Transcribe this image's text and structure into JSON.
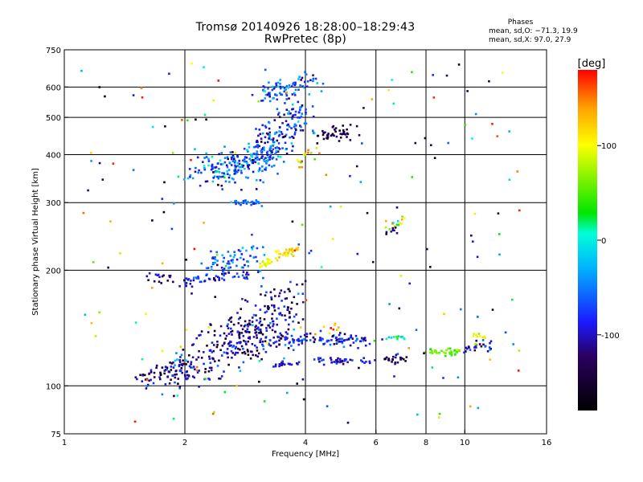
{
  "title": {
    "line1": "Tromsø 20140926 18:28:00–18:29:43",
    "line2": "RwPretec (8p)"
  },
  "stats": {
    "heading": "Phases",
    "o_mode": "mean, sd,O: −71.3, 19.9",
    "x_mode": "mean, sd,X:  97.0, 27.9"
  },
  "chart_data": {
    "type": "scatter",
    "title": "Tromsø 20140926 18:28:00–18:29:43",
    "subtitle": "RwPretec (8p)",
    "xlabel": "Frequency [MHz]",
    "ylabel": "Stationary phase Virtual Height [km]",
    "x_scale": "log",
    "y_scale": "log",
    "xlim": [
      1,
      16
    ],
    "ylim": [
      75,
      750
    ],
    "x_ticks": [
      1,
      2,
      4,
      6,
      8,
      10,
      16
    ],
    "x_tick_labels": [
      "1",
      "2",
      "4",
      "6",
      "8",
      "10",
      "16"
    ],
    "x_gridlines": [
      2,
      4,
      6,
      8,
      10
    ],
    "y_ticks": [
      75,
      100,
      200,
      300,
      400,
      500,
      600,
      750
    ],
    "y_tick_labels": [
      "75",
      "100",
      "200",
      "300",
      "400",
      "500",
      "600",
      "750"
    ],
    "y_gridlines": [
      100,
      200,
      300,
      400,
      500,
      600
    ],
    "grid": true,
    "colorbar": {
      "label": "[deg]",
      "range": [
        -180,
        180
      ],
      "ticks": [
        100,
        0,
        -100
      ],
      "tick_labels": [
        "100",
        "0",
        "-100"
      ],
      "position": "right"
    },
    "color_stops": [
      "#000000",
      "#2a0060",
      "#1a1aff",
      "#00b4ff",
      "#00ffd8",
      "#00e600",
      "#ffff00",
      "#ffa000",
      "#ff0000"
    ],
    "series": [
      {
        "from": [
          1.55,
          104
        ],
        "to": [
          2.2,
          112
        ],
        "count": 90,
        "spread": [
          0.05,
          0.04
        ],
        "phase": [
          -115,
          30
        ]
      },
      {
        "from": [
          2.0,
          110
        ],
        "to": [
          3.3,
          145
        ],
        "count": 160,
        "spread": [
          0.07,
          0.07
        ],
        "phase": [
          -110,
          35
        ]
      },
      {
        "from": [
          2.6,
          130
        ],
        "to": [
          3.8,
          170
        ],
        "count": 150,
        "spread": [
          0.05,
          0.09
        ],
        "phase": [
          -115,
          30
        ]
      },
      {
        "from": [
          3.2,
          132
        ],
        "to": [
          5.8,
          132
        ],
        "count": 120,
        "spread": [
          0.03,
          0.02
        ],
        "phase": [
          -85,
          25
        ]
      },
      {
        "from": [
          3.3,
          114
        ],
        "to": [
          3.9,
          114
        ],
        "count": 18,
        "spread": [
          0.01,
          0.01
        ],
        "phase": [
          -90,
          15
        ]
      },
      {
        "from": [
          4.2,
          116
        ],
        "to": [
          5.8,
          116
        ],
        "count": 45,
        "spread": [
          0.02,
          0.01
        ],
        "phase": [
          -95,
          20
        ]
      },
      {
        "from": [
          3.9,
          138
        ],
        "to": [
          5.0,
          140
        ],
        "count": 10,
        "spread": [
          0.01,
          0.02
        ],
        "phase": [
          140,
          20
        ]
      },
      {
        "from": [
          6.3,
          117
        ],
        "to": [
          7.1,
          117
        ],
        "count": 22,
        "spread": [
          0.01,
          0.01
        ],
        "phase": [
          -130,
          15
        ]
      },
      {
        "from": [
          8.0,
          122
        ],
        "to": [
          9.6,
          123
        ],
        "count": 35,
        "spread": [
          0.02,
          0.01
        ],
        "phase": [
          55,
          15
        ]
      },
      {
        "from": [
          10.0,
          126
        ],
        "to": [
          11.5,
          128
        ],
        "count": 25,
        "spread": [
          0.02,
          0.02
        ],
        "phase": [
          -100,
          30
        ]
      },
      {
        "from": [
          6.3,
          133
        ],
        "to": [
          7.1,
          133
        ],
        "count": 12,
        "spread": [
          0.01,
          0.01
        ],
        "phase": [
          10,
          20
        ]
      },
      {
        "from": [
          10.5,
          132
        ],
        "to": [
          11.3,
          136
        ],
        "count": 12,
        "spread": [
          0.01,
          0.02
        ],
        "phase": [
          90,
          20
        ]
      },
      {
        "from": [
          1.65,
          192
        ],
        "to": [
          1.85,
          188
        ],
        "count": 16,
        "spread": [
          0.02,
          0.02
        ],
        "phase": [
          -110,
          20
        ]
      },
      {
        "from": [
          1.9,
          186
        ],
        "to": [
          2.9,
          196
        ],
        "count": 55,
        "spread": [
          0.03,
          0.02
        ],
        "phase": [
          -90,
          25
        ]
      },
      {
        "from": [
          2.3,
          205
        ],
        "to": [
          3.1,
          222
        ],
        "count": 70,
        "spread": [
          0.04,
          0.04
        ],
        "phase": [
          -60,
          30
        ]
      },
      {
        "from": [
          3.05,
          205
        ],
        "to": [
          3.3,
          212
        ],
        "count": 20,
        "spread": [
          0.01,
          0.01
        ],
        "phase": [
          95,
          15
        ]
      },
      {
        "from": [
          3.4,
          220
        ],
        "to": [
          3.85,
          225
        ],
        "count": 30,
        "spread": [
          0.02,
          0.015
        ],
        "phase": [
          120,
          15
        ]
      },
      {
        "from": [
          2.7,
          300
        ],
        "to": [
          3.1,
          300
        ],
        "count": 30,
        "spread": [
          0.02,
          0.01
        ],
        "phase": [
          -60,
          20
        ]
      },
      {
        "from": [
          2.2,
          360
        ],
        "to": [
          3.3,
          400
        ],
        "count": 220,
        "spread": [
          0.06,
          0.05
        ],
        "phase": [
          -60,
          35
        ]
      },
      {
        "from": [
          3.1,
          420
        ],
        "to": [
          4.0,
          520
        ],
        "count": 140,
        "spread": [
          0.04,
          0.08
        ],
        "phase": [
          -75,
          35
        ]
      },
      {
        "from": [
          3.1,
          570
        ],
        "to": [
          4.3,
          630
        ],
        "count": 80,
        "spread": [
          0.04,
          0.03
        ],
        "phase": [
          -55,
          30
        ]
      },
      {
        "from": [
          4.2,
          440
        ],
        "to": [
          5.3,
          465
        ],
        "count": 45,
        "spread": [
          0.02,
          0.025
        ],
        "phase": [
          -140,
          20
        ]
      },
      {
        "from": [
          3.9,
          380
        ],
        "to": [
          4.4,
          410
        ],
        "count": 15,
        "spread": [
          0.02,
          0.02
        ],
        "phase": [
          110,
          40
        ]
      },
      {
        "from": [
          6.3,
          260
        ],
        "to": [
          7.1,
          270
        ],
        "count": 15,
        "spread": [
          0.015,
          0.02
        ],
        "phase": [
          80,
          60
        ]
      },
      {
        "from": [
          6.3,
          250
        ],
        "to": [
          7.0,
          255
        ],
        "count": 8,
        "spread": [
          0.01,
          0.01
        ],
        "phase": [
          -130,
          20
        ]
      },
      {
        "from": [
          1.1,
          80
        ],
        "to": [
          14,
          700
        ],
        "count": 200,
        "spread": [
          0.0,
          0.0
        ],
        "phase": [
          0,
          140
        ],
        "uniform": true
      }
    ]
  }
}
